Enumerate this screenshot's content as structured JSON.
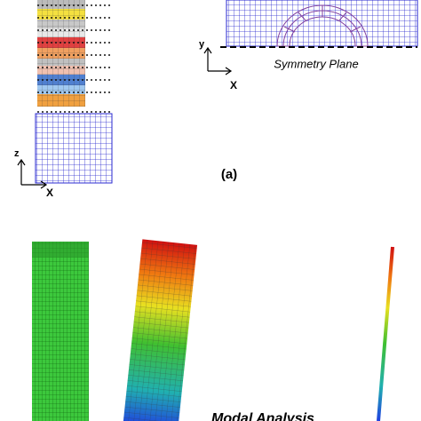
{
  "top_left": {
    "axis_z": "z",
    "axis_x": "X"
  },
  "top_right": {
    "axis_y": "y",
    "axis_x": "X",
    "plane_label": "Symmetry Plane"
  },
  "panel_label": "(a)",
  "bottom_label": "Modal Analysis"
}
